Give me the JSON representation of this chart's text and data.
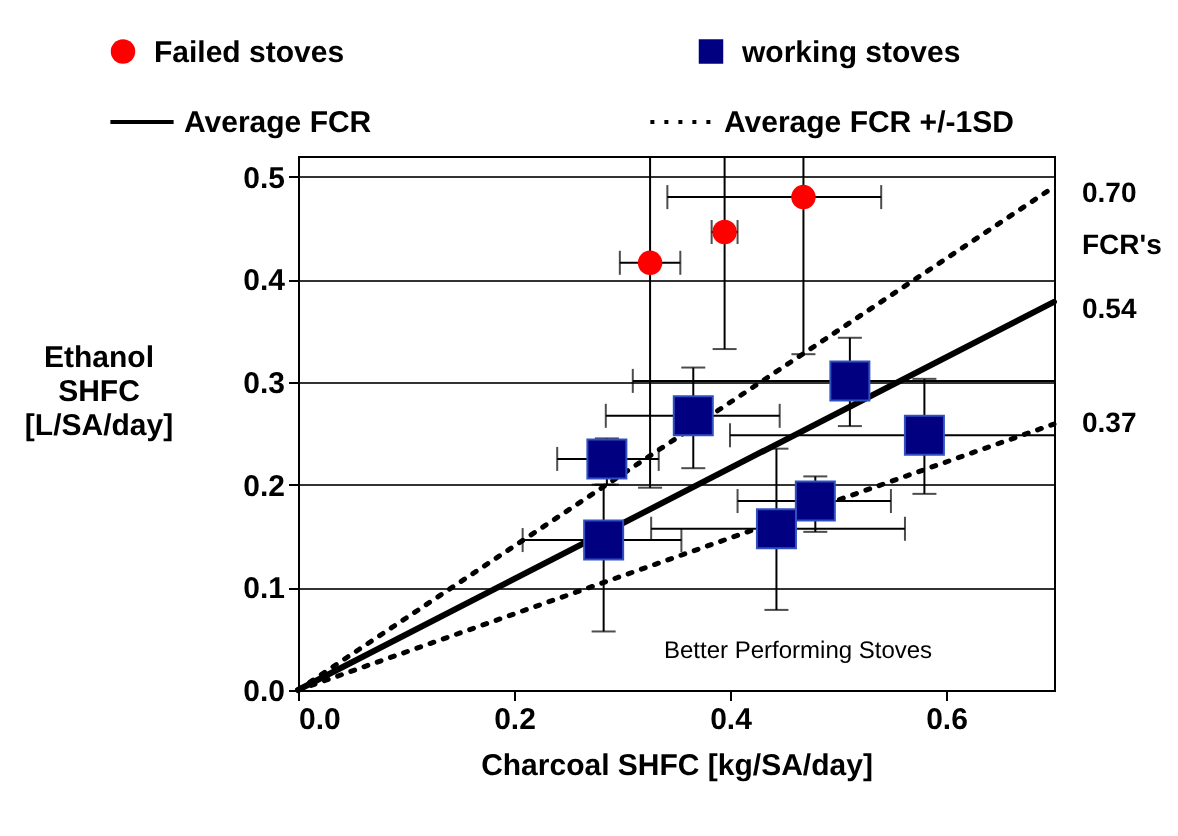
{
  "chart_data": {
    "type": "scatter",
    "xlabel": "Charcoal SHFC [kg/SA/day]",
    "ylabel": "Ethanol SHFC [L/SA/day]",
    "xlim": [
      0,
      0.7
    ],
    "xticks": [
      {
        "value": 0,
        "label": "0.0"
      },
      0.2,
      0.4,
      0.6
    ],
    "ylim": [
      0,
      0.52
    ],
    "yticks": [
      {
        "value": 0,
        "label": "0.0"
      },
      0.1,
      0.2,
      0.3,
      0.4,
      0.5
    ],
    "grid": "y",
    "legend": "top",
    "series": [
      {
        "name": "Failed stoves",
        "type": "scatter",
        "marker": "circle",
        "color": "#ff0000",
        "x": [
          0.326,
          0.395,
          0.468
        ],
        "values": [
          0.416,
          0.446,
          0.48
        ],
        "errors": [
          [
            0.197,
            0.52
          ],
          [
            0.332,
            0.52
          ],
          [
            0.327,
            0.52
          ]
        ],
        "xerrors": [
          [
            0.298,
            0.354
          ],
          [
            0.383,
            0.407
          ],
          [
            0.342,
            0.54
          ]
        ]
      },
      {
        "name": "working stoves",
        "type": "scatter",
        "marker": "square",
        "color": "#000080",
        "x": [
          0.286,
          0.283,
          0.366,
          0.511,
          0.58,
          0.479,
          0.443
        ],
        "values": [
          0.225,
          0.146,
          0.267,
          0.301,
          0.248,
          0.184,
          0.157
        ],
        "errors": [
          [
            0.2,
            0.245
          ],
          [
            0.057,
            0.2
          ],
          [
            0.216,
            0.314
          ],
          [
            0.257,
            0.343
          ],
          [
            0.191,
            0.303
          ],
          [
            0.154,
            0.208
          ],
          [
            0.078,
            0.235
          ]
        ],
        "xerrors": [
          [
            0.24,
            0.334
          ],
          [
            0.208,
            0.355
          ],
          [
            0.285,
            0.446
          ],
          [
            0.31,
            0.7
          ],
          [
            0.4,
            0.7
          ],
          [
            0.407,
            0.549
          ],
          [
            0.327,
            0.562
          ]
        ]
      },
      {
        "name": "Average FCR",
        "type": "line",
        "line_style": "solid",
        "color": "#000000",
        "x": [
          0,
          0.7
        ],
        "values": [
          0,
          0.378
        ]
      },
      {
        "name": "Average FCR +/-1SD",
        "type": "line",
        "line_style": "dotted",
        "color": "#000000",
        "x": [
          0,
          0.7
        ],
        "values": [
          0,
          0.49
        ]
      },
      {
        "type": "line",
        "line_style": "dotted",
        "color": "#000000",
        "x": [
          0,
          0.7
        ],
        "values": [
          0,
          0.259
        ]
      }
    ],
    "annotations": [
      "0.70",
      "FCR's",
      "0.54",
      "0.37",
      "Better Performing Stoves"
    ]
  }
}
